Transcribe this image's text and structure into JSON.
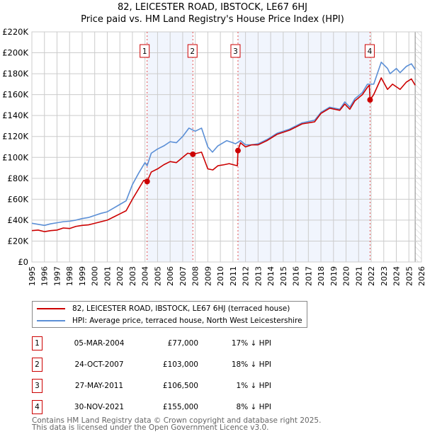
{
  "chart_data": {
    "type": "line",
    "title": "82, LEICESTER ROAD, IBSTOCK, LE67 6HJ",
    "subtitle": "Price paid vs. HM Land Registry's House Price Index (HPI)",
    "xlim": [
      1995,
      2026
    ],
    "ylim": [
      0,
      220000
    ],
    "xticks": [
      "1995",
      "1996",
      "1997",
      "1998",
      "1999",
      "2000",
      "2001",
      "2002",
      "2003",
      "2004",
      "2005",
      "2006",
      "2007",
      "2008",
      "2009",
      "2010",
      "2011",
      "2012",
      "2013",
      "2014",
      "2015",
      "2016",
      "2017",
      "2018",
      "2019",
      "2020",
      "2021",
      "2022",
      "2023",
      "2024",
      "2025",
      "2026"
    ],
    "yticks": [
      {
        "v": 0,
        "label": "£0"
      },
      {
        "v": 20000,
        "label": "£20K"
      },
      {
        "v": 40000,
        "label": "£40K"
      },
      {
        "v": 60000,
        "label": "£60K"
      },
      {
        "v": 80000,
        "label": "£80K"
      },
      {
        "v": 100000,
        "label": "£100K"
      },
      {
        "v": 120000,
        "label": "£120K"
      },
      {
        "v": 140000,
        "label": "£140K"
      },
      {
        "v": 160000,
        "label": "£160K"
      },
      {
        "v": 180000,
        "label": "£180K"
      },
      {
        "v": 200000,
        "label": "£200K"
      },
      {
        "v": 220000,
        "label": "£220K"
      }
    ],
    "grid": true,
    "shaded_periods": [
      [
        2004.17,
        2007.81
      ],
      [
        2011.4,
        2021.91
      ]
    ],
    "forecast_hatch_from": 2025.5,
    "series": [
      {
        "name": "82, LEICESTER ROAD, IBSTOCK, LE67 6HJ (terraced house)",
        "color": "#cc0000",
        "x": [
          1995,
          1995.5,
          1996,
          1996.5,
          1997,
          1997.5,
          1998,
          1998.5,
          1999,
          1999.5,
          2000,
          2000.5,
          2001,
          2001.5,
          2002,
          2002.5,
          2003,
          2003.5,
          2003.9,
          2004.17,
          2004.5,
          2005,
          2005.5,
          2006,
          2006.5,
          2007,
          2007.4,
          2007.81,
          2008.5,
          2009,
          2009.4,
          2009.8,
          2010.3,
          2010.7,
          2011.35,
          2011.4,
          2011.6,
          2012,
          2012.5,
          2013,
          2013.7,
          2014.5,
          2015.5,
          2016.5,
          2017.5,
          2018,
          2018.7,
          2019.5,
          2019.9,
          2020.3,
          2020.7,
          2021.3,
          2021.7,
          2021.85,
          2021.91,
          2022.2,
          2022.8,
          2023.3,
          2023.7,
          2024.3,
          2024.8,
          2025.2,
          2025.5
        ],
        "y": [
          30000,
          30500,
          29000,
          30000,
          30500,
          32500,
          32000,
          34000,
          35000,
          35500,
          37000,
          38500,
          40000,
          43000,
          46000,
          49000,
          60000,
          70000,
          78000,
          77000,
          86000,
          89000,
          93000,
          96000,
          95000,
          100000,
          104000,
          103000,
          105000,
          89000,
          88000,
          92000,
          93000,
          94000,
          92000,
          106500,
          114000,
          110000,
          112000,
          112000,
          116000,
          122000,
          126000,
          132000,
          134000,
          142000,
          147000,
          145000,
          151000,
          146000,
          154000,
          160000,
          167000,
          169000,
          155000,
          160000,
          176000,
          165000,
          170000,
          165000,
          172000,
          175000,
          169000
        ]
      },
      {
        "name": "HPI: Average price, terraced house, North West Leicestershire",
        "color": "#5b8fd6",
        "x": [
          1995,
          1995.5,
          1996,
          1996.5,
          1997,
          1997.5,
          1998,
          1998.5,
          1999,
          1999.5,
          2000,
          2000.5,
          2001,
          2001.5,
          2002,
          2002.5,
          2003,
          2003.5,
          2004,
          2004.17,
          2004.5,
          2005,
          2005.5,
          2006,
          2006.5,
          2007,
          2007.5,
          2008,
          2008.5,
          2009,
          2009.37,
          2009.8,
          2010.5,
          2011,
          2011.2,
          2011.6,
          2012,
          2012.5,
          2013,
          2013.7,
          2014.5,
          2015.5,
          2016.5,
          2017.5,
          2018,
          2018.7,
          2019.5,
          2019.9,
          2020.3,
          2020.7,
          2021.3,
          2021.7,
          2022.2,
          2022.8,
          2023.3,
          2023.5,
          2024,
          2024.3,
          2024.8,
          2025.2,
          2025.5
        ],
        "y": [
          37000,
          36000,
          35000,
          36500,
          37500,
          38500,
          39000,
          40000,
          41500,
          42500,
          44500,
          46500,
          48000,
          51500,
          55000,
          58500,
          74000,
          85000,
          95000,
          92000,
          104000,
          108000,
          111000,
          115000,
          114000,
          120000,
          128000,
          125000,
          128000,
          110000,
          105000,
          111000,
          116000,
          114000,
          113000,
          116000,
          112000,
          112000,
          113000,
          117000,
          123000,
          127000,
          133000,
          135500,
          143000,
          148000,
          146000,
          153000,
          148000,
          156000,
          162000,
          170000,
          170000,
          191000,
          185000,
          180000,
          185000,
          181000,
          187000,
          189500,
          184000
        ]
      }
    ],
    "sales": [
      {
        "n": "1",
        "x": 2004.17,
        "y": 77000,
        "date": "05-MAR-2004",
        "price": "£77,000",
        "hpi": "17% ↓ HPI"
      },
      {
        "n": "2",
        "x": 2007.81,
        "y": 103000,
        "date": "24-OCT-2007",
        "price": "£103,000",
        "hpi": "18% ↓ HPI"
      },
      {
        "n": "3",
        "x": 2011.4,
        "y": 106500,
        "date": "27-MAY-2011",
        "price": "£106,500",
        "hpi": "1% ↓ HPI"
      },
      {
        "n": "4",
        "x": 2021.91,
        "y": 155000,
        "date": "30-NOV-2021",
        "price": "£155,000",
        "hpi": "8% ↓ HPI"
      }
    ]
  },
  "legend": {
    "property": "82, LEICESTER ROAD, IBSTOCK, LE67 6HJ (terraced house)",
    "hpi": "HPI: Average price, terraced house, North West Leicestershire"
  },
  "footer": {
    "line1": "Contains HM Land Registry data © Crown copyright and database right 2025.",
    "line2": "This data is licensed under the Open Government Licence v3.0."
  }
}
